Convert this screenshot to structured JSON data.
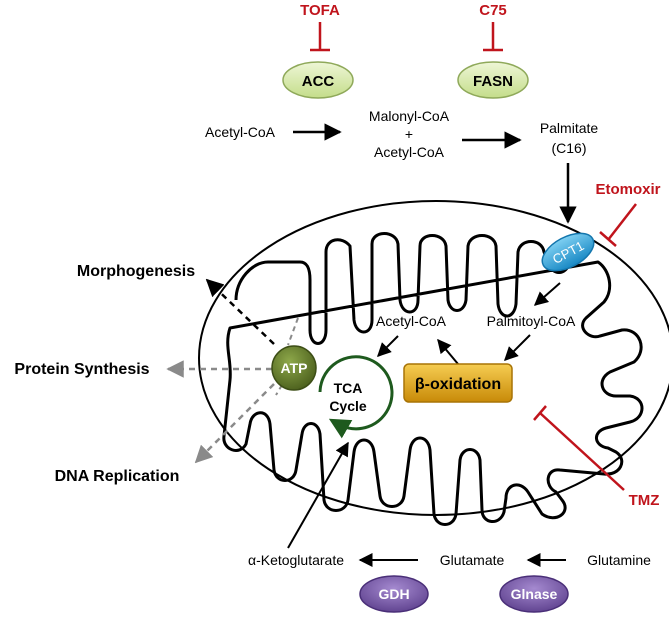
{
  "inhibitors": {
    "tofa": "TOFA",
    "c75": "C75",
    "etomoxir": "Etomoxir",
    "tmz": "TMZ"
  },
  "enzymes": {
    "acc": "ACC",
    "fasn": "FASN",
    "cpt1": "CPT1",
    "gdh": "GDH",
    "glnase": "Glnase",
    "beta_oxidation": "β-oxidation",
    "atp": "ATP"
  },
  "metabolites": {
    "acetyl_coa_top": "Acetyl-CoA",
    "malonyl_coa": "Malonyl-CoA",
    "plus": "+",
    "acetyl_coa_mid": "Acetyl-CoA",
    "palmitate": "Palmitate",
    "c16": "(C16)",
    "acetyl_coa_inner": "Acetyl-CoA",
    "palmitoyl_coa": "Palmitoyl-CoA",
    "tca_line1": "TCA",
    "tca_line2": "Cycle",
    "ketoglutarate": "α-Ketoglutarate",
    "glutamate": "Glutamate",
    "glutamine": "Glutamine"
  },
  "outcomes": {
    "morphogenesis": "Morphogenesis",
    "protein_synthesis": "Protein Synthesis",
    "dna_replication": "DNA Replication"
  },
  "colors": {
    "inhibitor": "#c0141c",
    "enzyme_green_fill": "#d6e9a8",
    "enzyme_green_stroke": "#8fa95a",
    "cpt1_fill": "#2a9fd6",
    "beta_ox_fill": "#e0a612",
    "atp_fill": "#5e7327",
    "purple_fill": "#7a5aa6",
    "tca_stroke": "#1e5a1e",
    "dashed_grey": "#8a8a8a"
  }
}
